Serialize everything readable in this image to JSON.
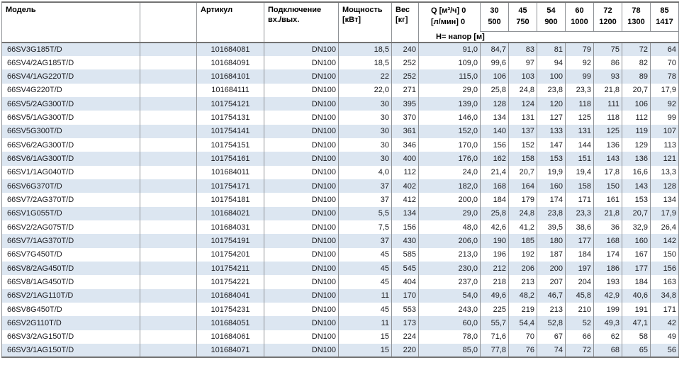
{
  "header": {
    "col_model": "Модель",
    "col_article": "Артикул",
    "col_connection": "Подключение вх./вых.",
    "col_power": "Мощность [кВт]",
    "col_weight": "Вес [кг]",
    "col_q_line1": "Q [м³/ч] 0",
    "col_q_line2": "[л/мин] 0",
    "flow_columns": [
      {
        "m3h": "30",
        "lmin": "500"
      },
      {
        "m3h": "45",
        "lmin": "750"
      },
      {
        "m3h": "54",
        "lmin": "900"
      },
      {
        "m3h": "60",
        "lmin": "1000"
      },
      {
        "m3h": "72",
        "lmin": "1200"
      },
      {
        "m3h": "78",
        "lmin": "1300"
      },
      {
        "m3h": "85",
        "lmin": "1417"
      }
    ],
    "head_label": "Н= напор [м]"
  },
  "colors": {
    "row_alt": "#dce6f1",
    "border": "#8f9296",
    "border_heavy": "#737373"
  },
  "rows": [
    {
      "model": "66SV3G185T/D",
      "article": "101684081",
      "connection": "DN100",
      "power": "18,5",
      "weight": "240",
      "values": [
        "91,0",
        "84,7",
        "83",
        "81",
        "79",
        "75",
        "72",
        "64"
      ]
    },
    {
      "model": "66SV4/2AG185T/D",
      "article": "101684091",
      "connection": "DN100",
      "power": "18,5",
      "weight": "252",
      "values": [
        "109,0",
        "99,6",
        "97",
        "94",
        "92",
        "86",
        "82",
        "70"
      ]
    },
    {
      "model": "66SV4/1AG220T/D",
      "article": "101684101",
      "connection": "DN100",
      "power": "22",
      "weight": "252",
      "values": [
        "115,0",
        "106",
        "103",
        "100",
        "99",
        "93",
        "89",
        "78"
      ]
    },
    {
      "model": "66SV4G220T/D",
      "article": "101684111",
      "connection": "DN100",
      "power": "22,0",
      "weight": "271",
      "values": [
        "29,0",
        "25,8",
        "24,8",
        "23,8",
        "23,3",
        "21,8",
        "20,7",
        "17,9"
      ]
    },
    {
      "model": "66SV5/2AG300T/D",
      "article": "101754121",
      "connection": "DN100",
      "power": "30",
      "weight": "395",
      "values": [
        "139,0",
        "128",
        "124",
        "120",
        "118",
        "111",
        "106",
        "92"
      ]
    },
    {
      "model": "66SV5/1AG300T/D",
      "article": "101754131",
      "connection": "DN100",
      "power": "30",
      "weight": "370",
      "values": [
        "146,0",
        "134",
        "131",
        "127",
        "125",
        "118",
        "112",
        "99"
      ]
    },
    {
      "model": "66SV5G300T/D",
      "article": "101754141",
      "connection": "DN100",
      "power": "30",
      "weight": "361",
      "values": [
        "152,0",
        "140",
        "137",
        "133",
        "131",
        "125",
        "119",
        "107"
      ]
    },
    {
      "model": "66SV6/2AG300T/D",
      "article": "101754151",
      "connection": "DN100",
      "power": "30",
      "weight": "346",
      "values": [
        "170,0",
        "156",
        "152",
        "147",
        "144",
        "136",
        "129",
        "113"
      ]
    },
    {
      "model": "66SV6/1AG300T/D",
      "article": "101754161",
      "connection": "DN100",
      "power": "30",
      "weight": "400",
      "values": [
        "176,0",
        "162",
        "158",
        "153",
        "151",
        "143",
        "136",
        "121"
      ]
    },
    {
      "model": "66SV1/1AG040T/D",
      "article": "101684011",
      "connection": "DN100",
      "power": "4,0",
      "weight": "112",
      "values": [
        "24,0",
        "21,4",
        "20,7",
        "19,9",
        "19,4",
        "17,8",
        "16,6",
        "13,3"
      ]
    },
    {
      "model": "66SV6G370T/D",
      "article": "101754171",
      "connection": "DN100",
      "power": "37",
      "weight": "402",
      "values": [
        "182,0",
        "168",
        "164",
        "160",
        "158",
        "150",
        "143",
        "128"
      ]
    },
    {
      "model": "66SV7/2AG370T/D",
      "article": "101754181",
      "connection": "DN100",
      "power": "37",
      "weight": "412",
      "values": [
        "200,0",
        "184",
        "179",
        "174",
        "171",
        "161",
        "153",
        "134"
      ]
    },
    {
      "model": "66SV1G055T/D",
      "article": "101684021",
      "connection": "DN100",
      "power": "5,5",
      "weight": "134",
      "values": [
        "29,0",
        "25,8",
        "24,8",
        "23,8",
        "23,3",
        "21,8",
        "20,7",
        "17,9"
      ]
    },
    {
      "model": "66SV2/2AG075T/D",
      "article": "101684031",
      "connection": "DN100",
      "power": "7,5",
      "weight": "156",
      "values": [
        "48,0",
        "42,6",
        "41,2",
        "39,5",
        "38,6",
        "36",
        "32,9",
        "26,4"
      ]
    },
    {
      "model": "66SV7/1AG370T/D",
      "article": "101754191",
      "connection": "DN100",
      "power": "37",
      "weight": "430",
      "values": [
        "206,0",
        "190",
        "185",
        "180",
        "177",
        "168",
        "160",
        "142"
      ]
    },
    {
      "model": "66SV7G450T/D",
      "article": "101754201",
      "connection": "DN100",
      "power": "45",
      "weight": "585",
      "values": [
        "213,0",
        "196",
        "192",
        "187",
        "184",
        "174",
        "167",
        "150"
      ]
    },
    {
      "model": "66SV8/2AG450T/D",
      "article": "101754211",
      "connection": "DN100",
      "power": "45",
      "weight": "545",
      "values": [
        "230,0",
        "212",
        "206",
        "200",
        "197",
        "186",
        "177",
        "156"
      ]
    },
    {
      "model": "66SV8/1AG450T/D",
      "article": "101754221",
      "connection": "DN100",
      "power": "45",
      "weight": "404",
      "values": [
        "237,0",
        "218",
        "213",
        "207",
        "204",
        "193",
        "184",
        "163"
      ]
    },
    {
      "model": "66SV2/1AG110T/D",
      "article": "101684041",
      "connection": "DN100",
      "power": "11",
      "weight": "170",
      "values": [
        "54,0",
        "49,6",
        "48,2",
        "46,7",
        "45,8",
        "42,9",
        "40,6",
        "34,8"
      ]
    },
    {
      "model": "66SV8G450T/D",
      "article": "101754231",
      "connection": "DN100",
      "power": "45",
      "weight": "553",
      "values": [
        "243,0",
        "225",
        "219",
        "213",
        "210",
        "199",
        "191",
        "171"
      ]
    },
    {
      "model": "66SV2G110T/D",
      "article": "101684051",
      "connection": "DN100",
      "power": "11",
      "weight": "173",
      "values": [
        "60,0",
        "55,7",
        "54,4",
        "52,8",
        "52",
        "49,3",
        "47,1",
        "42"
      ]
    },
    {
      "model": "66SV3/2AG150T/D",
      "article": "101684061",
      "connection": "DN100",
      "power": "15",
      "weight": "224",
      "values": [
        "78,0",
        "71,6",
        "70",
        "67",
        "66",
        "62",
        "58",
        "49"
      ]
    },
    {
      "model": "66SV3/1AG150T/D",
      "article": "101684071",
      "connection": "DN100",
      "power": "15",
      "weight": "220",
      "values": [
        "85,0",
        "77,8",
        "76",
        "74",
        "72",
        "68",
        "65",
        "56"
      ]
    }
  ]
}
